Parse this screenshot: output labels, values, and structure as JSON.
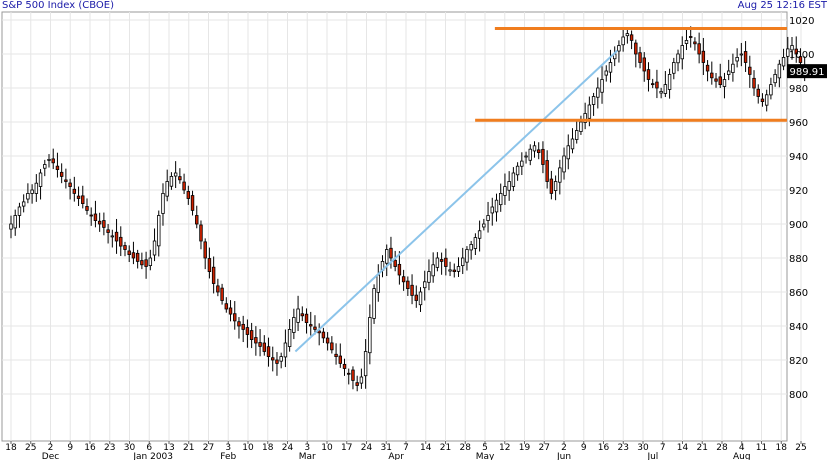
{
  "header": {
    "title": "S&P 500 Index (CBOE)",
    "timestamp": "Aug 25 12:16 EST"
  },
  "colors": {
    "up_candle": "#ffffff",
    "down_candle": "#cc2200",
    "grid": "#e6e6e6",
    "trendline": "#8cc4ea",
    "resistance_line": "#f07d1e",
    "axis_text": "#000000",
    "price_box": "#000000"
  },
  "chart_data": {
    "type": "candlestick",
    "title": "S&P 500 Index (CBOE)",
    "ylim": [
      780,
      1020
    ],
    "y_ticks": [
      800,
      820,
      840,
      860,
      880,
      900,
      920,
      940,
      960,
      980,
      1000,
      1020
    ],
    "x_ticks": [
      "18",
      "25",
      "2",
      "9",
      "16",
      "23",
      "30",
      "6",
      "13",
      "21",
      "27",
      "3",
      "10",
      "18",
      "24",
      "3",
      "10",
      "17",
      "24",
      "31",
      "7",
      "14",
      "21",
      "28",
      "5",
      "12",
      "19",
      "27",
      "2",
      "9",
      "16",
      "23",
      "30",
      "7",
      "14",
      "21",
      "28",
      "4",
      "11",
      "18",
      "25"
    ],
    "month_labels": [
      "Dec",
      "Jan 2003",
      "Feb",
      "Mar",
      "Apr",
      "May",
      "Jun",
      "Jul",
      "Aug"
    ],
    "last_price": "989.91",
    "grid": true,
    "horizontal_levels": [
      {
        "name": "resistance",
        "value": 1015,
        "from_week": 24.5
      },
      {
        "name": "support",
        "value": 961,
        "from_week": 23.5
      }
    ],
    "trendline": [
      {
        "week": 14.4,
        "value": 825
      },
      {
        "week": 30.7,
        "value": 1002
      }
    ],
    "daily_closes": [
      900,
      905,
      910,
      913,
      918,
      920,
      924,
      930,
      935,
      938,
      936,
      932,
      928,
      925,
      922,
      918,
      915,
      912,
      908,
      905,
      902,
      900,
      898,
      895,
      893,
      890,
      887,
      885,
      882,
      880,
      878,
      876,
      875,
      880,
      890,
      905,
      918,
      925,
      928,
      930,
      926,
      920,
      915,
      908,
      900,
      890,
      880,
      872,
      865,
      860,
      855,
      850,
      847,
      843,
      840,
      838,
      835,
      832,
      830,
      828,
      825,
      822,
      820,
      818,
      822,
      830,
      838,
      845,
      850,
      846,
      842,
      840,
      838,
      836,
      833,
      830,
      826,
      822,
      818,
      815,
      812,
      808,
      805,
      810,
      825,
      845,
      862,
      870,
      878,
      885,
      880,
      875,
      870,
      866,
      862,
      858,
      855,
      860,
      866,
      872,
      876,
      880,
      878,
      875,
      873,
      872,
      875,
      880,
      885,
      888,
      892,
      896,
      900,
      905,
      910,
      914,
      918,
      922,
      925,
      930,
      934,
      937,
      940,
      944,
      946,
      942,
      935,
      925,
      918,
      925,
      933,
      940,
      946,
      950,
      955,
      960,
      965,
      970,
      975,
      980,
      985,
      990,
      995,
      1000,
      1005,
      1010,
      1012,
      1008,
      1000,
      995,
      990,
      985,
      982,
      980,
      978,
      982,
      988,
      995,
      1000,
      1005,
      1008,
      1010,
      1006,
      1000,
      995,
      990,
      986,
      984,
      982,
      985,
      990,
      994,
      998,
      1000,
      995,
      988,
      980,
      975,
      972,
      976,
      982,
      988,
      994,
      998,
      1003,
      1005,
      1000,
      995,
      990
    ]
  }
}
